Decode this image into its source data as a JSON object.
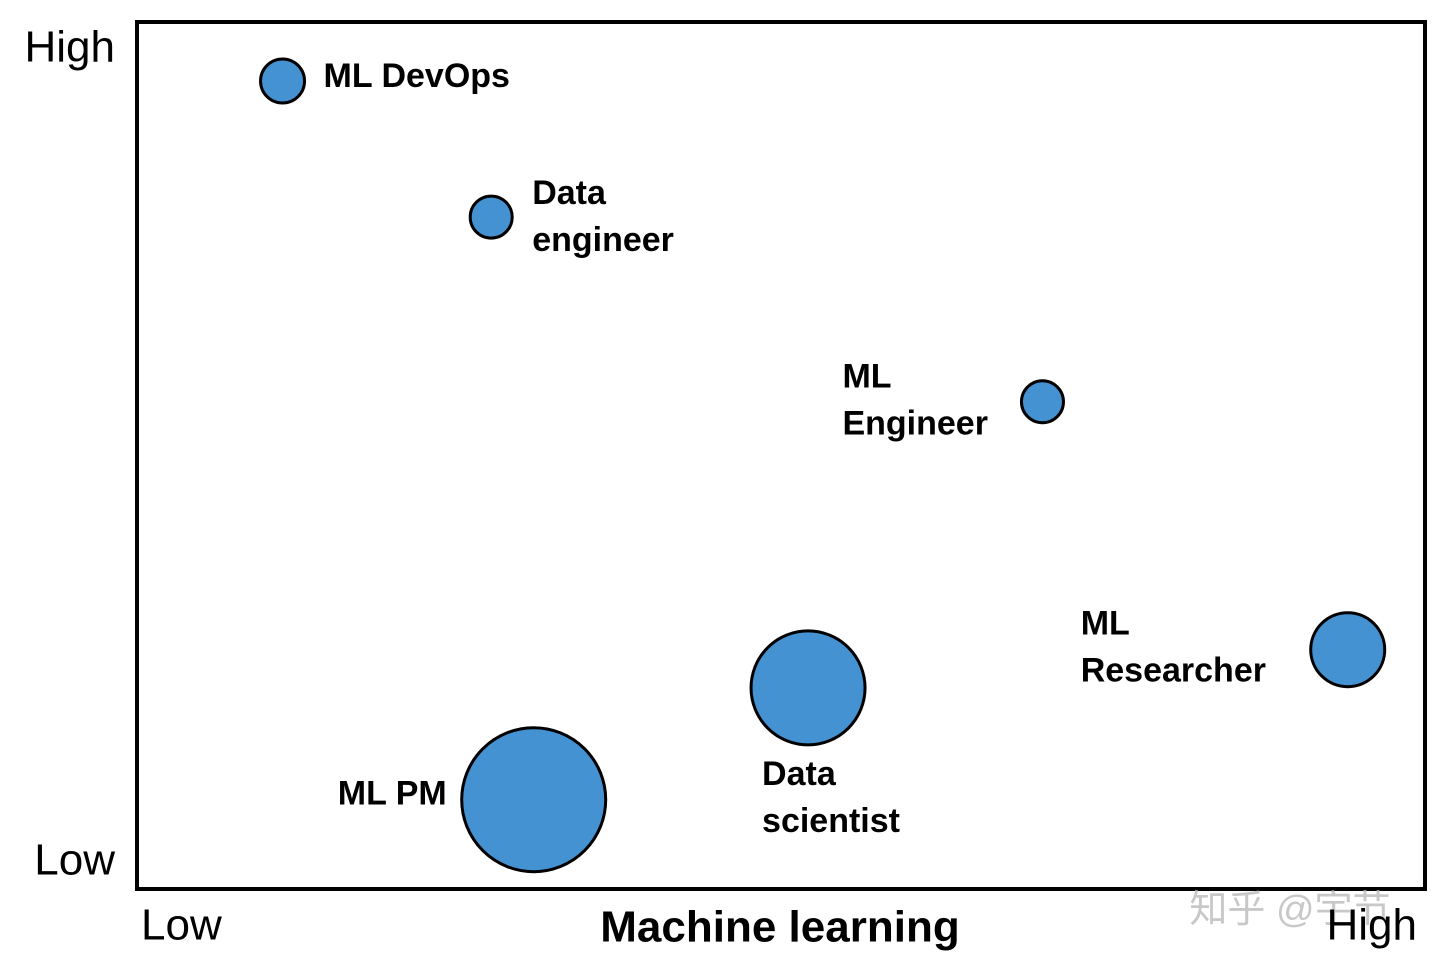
{
  "chart_data": {
    "type": "bubble",
    "x_label": "Machine learning",
    "xlim": [
      0,
      100
    ],
    "ylim": [
      0,
      100
    ],
    "xticks": [
      {
        "value": 0,
        "label": "Low"
      },
      {
        "value": 100,
        "label": "High"
      }
    ],
    "yticks": [
      {
        "value": 0,
        "label": "Low"
      },
      {
        "value": 100,
        "label": "High"
      }
    ],
    "color": "#4592d3",
    "points": [
      {
        "label": "ML DevOps",
        "x": 11.3,
        "y": 93.2,
        "size": 22
      },
      {
        "label": "Data\nengineer",
        "x": 27.5,
        "y": 77.5,
        "size": 21
      },
      {
        "label": "ML\nEngineer",
        "x": 70.3,
        "y": 56.2,
        "size": 21
      },
      {
        "label": "ML\nResearcher",
        "x": 94.0,
        "y": 27.6,
        "size": 37
      },
      {
        "label": "Data\nscientist",
        "x": 52.1,
        "y": 23.2,
        "size": 57
      },
      {
        "label": "ML PM",
        "x": 30.8,
        "y": 10.3,
        "size": 72
      }
    ],
    "watermark": "知乎 @宇节"
  }
}
